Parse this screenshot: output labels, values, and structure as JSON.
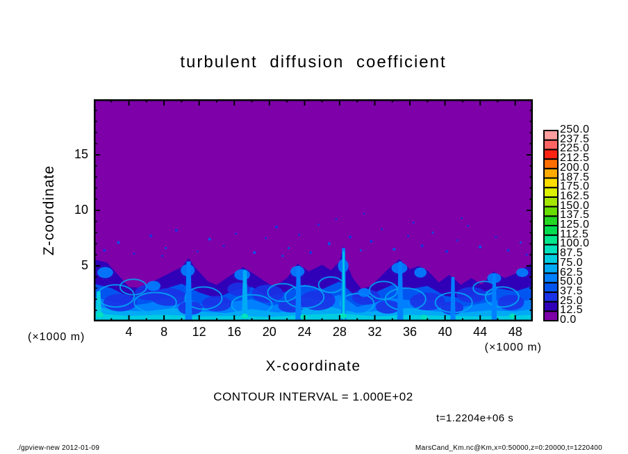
{
  "header": {
    "title": "turbulent diffusion coefficient"
  },
  "annotations": {
    "contour_interval": "CONTOUR INTERVAL = 1.000E+02",
    "time_label": "t=1.2204e+06 s"
  },
  "footer": {
    "left": "./gpview-new  2012-01-09",
    "right": "MarsCand_Km.nc@Km,x=0:50000,z=0:20000,t=1220400"
  },
  "axes": {
    "x": {
      "label": "X-coordinate",
      "unit": "(×1000 m)",
      "min": 0,
      "max": 50,
      "major_step": 4,
      "minor_step": 2,
      "major_ticks": [
        4,
        8,
        12,
        16,
        20,
        24,
        28,
        32,
        36,
        40,
        44,
        48
      ]
    },
    "z": {
      "label": "Z-coordinate",
      "unit": "(×1000 m)",
      "min": 0,
      "max": 20,
      "major_step": 5,
      "minor_step": 1,
      "major_ticks": [
        5,
        10,
        15
      ]
    }
  },
  "chart_data": {
    "type": "heatmap",
    "title": "turbulent diffusion coefficient",
    "xlabel": "X-coordinate (×1000 m)",
    "ylabel": "Z-coordinate (×1000 m)",
    "xlim": [
      0,
      50
    ],
    "ylim": [
      0,
      20
    ],
    "grid": false,
    "legend_position": "right-colorbar",
    "contour_interval": "1.000E+02",
    "time_seconds": "1.2204e+06",
    "colorbar": {
      "min": 0.0,
      "max": 250.0,
      "step": 12.5,
      "labels": [
        "0.0",
        "12.5",
        "25.0",
        "37.5",
        "50.0",
        "62.5",
        "75.0",
        "87.5",
        "100.0",
        "112.5",
        "125.0",
        "137.5",
        "150.0",
        "162.5",
        "175.0",
        "187.5",
        "200.0",
        "212.5",
        "225.0",
        "237.5",
        "250.0"
      ],
      "colors": [
        "#7d00a8",
        "#3000b9",
        "#1932e6",
        "#0055f0",
        "#0080ff",
        "#00aaf5",
        "#00cde1",
        "#00e1be",
        "#00e68c",
        "#00dc50",
        "#23d723",
        "#69dc00",
        "#a5e600",
        "#dcf000",
        "#ffdc00",
        "#ffaa00",
        "#ff6e00",
        "#ff2314",
        "#ff6464",
        "#ff9e9e"
      ],
      "background_value_color": "#7d00a8"
    },
    "field": {
      "description": "Turbulent boundary layer of enhanced diffusion (values ~12.5-100) below z~5-7 km; near-zero (purple) above with scattered small turbulent patches.",
      "interface": [
        [
          0,
          5.6
        ],
        [
          1.5,
          5.3
        ],
        [
          3,
          4.0
        ],
        [
          4,
          3.1
        ],
        [
          5.5,
          3.0
        ],
        [
          7,
          3.7
        ],
        [
          8.5,
          4.3
        ],
        [
          10,
          4.9
        ],
        [
          10.8,
          5.7
        ],
        [
          11.5,
          4.9
        ],
        [
          13,
          3.6
        ],
        [
          14,
          3.3
        ],
        [
          15.5,
          4.1
        ],
        [
          17,
          4.9
        ],
        [
          18,
          4.4
        ],
        [
          19.5,
          3.6
        ],
        [
          20.5,
          3.1
        ],
        [
          22,
          3.9
        ],
        [
          23.2,
          5.2
        ],
        [
          24.5,
          4.5
        ],
        [
          26,
          5.1
        ],
        [
          27,
          4.6
        ],
        [
          28,
          5.4
        ],
        [
          28.4,
          6.8
        ],
        [
          28.8,
          5.2
        ],
        [
          29.5,
          3.9
        ],
        [
          30.5,
          2.9
        ],
        [
          31.5,
          3.2
        ],
        [
          32.5,
          3.9
        ],
        [
          33.5,
          4.7
        ],
        [
          34.8,
          5.6
        ],
        [
          36,
          4.7
        ],
        [
          37,
          5.0
        ],
        [
          38,
          4.6
        ],
        [
          39.3,
          3.5
        ],
        [
          40.5,
          4.2
        ],
        [
          41.8,
          3.3
        ],
        [
          43,
          3.9
        ],
        [
          44.2,
          3.3
        ],
        [
          45.5,
          4.5
        ],
        [
          46.8,
          3.9
        ],
        [
          48,
          4.3
        ],
        [
          49,
          4.8
        ],
        [
          50,
          5.3
        ]
      ],
      "bands": [
        {
          "color": 3,
          "top": [
            [
              0,
              3.4
            ],
            [
              2,
              3.0
            ],
            [
              4,
              2.2
            ],
            [
              6,
              2.4
            ],
            [
              8,
              2.9
            ],
            [
              10,
              3.4
            ],
            [
              12,
              2.6
            ],
            [
              14,
              2.1
            ],
            [
              16,
              2.8
            ],
            [
              18,
              3.1
            ],
            [
              20,
              2.2
            ],
            [
              22,
              2.7
            ],
            [
              24,
              3.3
            ],
            [
              26,
              2.9
            ],
            [
              28,
              3.6
            ],
            [
              30,
              2.1
            ],
            [
              32,
              2.6
            ],
            [
              34,
              3.3
            ],
            [
              36,
              2.9
            ],
            [
              38,
              3.2
            ],
            [
              40,
              2.3
            ],
            [
              42,
              2.1
            ],
            [
              44,
              2.6
            ],
            [
              46,
              3.0
            ],
            [
              48,
              2.7
            ],
            [
              50,
              3.2
            ]
          ]
        },
        {
          "color": 4,
          "top": [
            [
              0,
              2.2
            ],
            [
              2,
              1.8
            ],
            [
              4,
              1.4
            ],
            [
              6,
              1.6
            ],
            [
              8,
              2.0
            ],
            [
              10,
              2.3
            ],
            [
              12,
              1.6
            ],
            [
              14,
              1.3
            ],
            [
              16,
              1.8
            ],
            [
              18,
              2.0
            ],
            [
              20,
              1.4
            ],
            [
              22,
              1.7
            ],
            [
              24,
              2.2
            ],
            [
              26,
              1.9
            ],
            [
              28,
              2.4
            ],
            [
              30,
              1.3
            ],
            [
              32,
              1.7
            ],
            [
              34,
              2.1
            ],
            [
              36,
              1.9
            ],
            [
              38,
              2.0
            ],
            [
              40,
              1.5
            ],
            [
              42,
              1.3
            ],
            [
              44,
              1.6
            ],
            [
              46,
              1.9
            ],
            [
              48,
              1.7
            ],
            [
              50,
              2.0
            ]
          ]
        },
        {
          "color": 5,
          "top": [
            [
              0,
              1.35
            ],
            [
              3,
              1.0
            ],
            [
              6,
              0.9
            ],
            [
              9,
              1.2
            ],
            [
              12,
              0.9
            ],
            [
              15,
              0.75
            ],
            [
              18,
              1.1
            ],
            [
              21,
              0.8
            ],
            [
              24,
              1.2
            ],
            [
              27,
              1.3
            ],
            [
              30,
              0.75
            ],
            [
              33,
              1.0
            ],
            [
              36,
              1.2
            ],
            [
              39,
              0.9
            ],
            [
              42,
              0.8
            ],
            [
              45,
              1.0
            ],
            [
              48,
              0.9
            ],
            [
              50,
              1.1
            ]
          ]
        },
        {
          "color": 6,
          "top": [
            [
              0,
              0.7
            ],
            [
              4,
              0.5
            ],
            [
              8,
              0.6
            ],
            [
              12,
              0.45
            ],
            [
              16,
              0.5
            ],
            [
              20,
              0.4
            ],
            [
              24,
              0.6
            ],
            [
              28,
              0.7
            ],
            [
              32,
              0.45
            ],
            [
              36,
              0.6
            ],
            [
              40,
              0.5
            ],
            [
              44,
              0.45
            ],
            [
              48,
              0.5
            ],
            [
              50,
              0.6
            ]
          ]
        }
      ],
      "dark_eddies": [
        [
          3,
          1.7,
          1.9,
          0.8
        ],
        [
          6.2,
          2.6,
          1.5,
          0.7
        ],
        [
          8.5,
          2.2,
          2.0,
          0.8
        ],
        [
          11,
          1.2,
          1.4,
          0.6
        ],
        [
          14,
          1.6,
          1.7,
          0.7
        ],
        [
          16.5,
          2.9,
          1.3,
          0.6
        ],
        [
          19.8,
          2.5,
          1.8,
          0.8
        ],
        [
          22.5,
          1.4,
          1.5,
          0.6
        ],
        [
          25.5,
          1.9,
          2.0,
          0.9
        ],
        [
          31,
          2.2,
          1.6,
          0.7
        ],
        [
          33.5,
          1.3,
          1.4,
          0.6
        ],
        [
          38,
          1.8,
          2.0,
          0.8
        ],
        [
          40.8,
          1.2,
          1.3,
          0.6
        ],
        [
          43,
          2.4,
          1.7,
          0.7
        ],
        [
          47.5,
          1.7,
          1.5,
          0.7
        ]
      ],
      "swirl_arcs": [
        [
          2.5,
          2.3,
          2.1,
          1.0
        ],
        [
          4.5,
          3.1,
          1.5,
          0.7
        ],
        [
          7,
          1.7,
          2.4,
          0.9
        ],
        [
          12.5,
          2.1,
          2.1,
          1.0
        ],
        [
          18,
          1.5,
          2.3,
          0.9
        ],
        [
          21.5,
          2.6,
          1.7,
          0.8
        ],
        [
          24,
          2.2,
          2.2,
          1.0
        ],
        [
          27,
          3.3,
          1.4,
          0.7
        ],
        [
          30,
          1.6,
          1.9,
          0.9
        ],
        [
          33,
          2.8,
          1.6,
          0.8
        ],
        [
          35.5,
          2.0,
          2.3,
          1.0
        ],
        [
          41,
          1.7,
          2.1,
          0.9
        ],
        [
          44.5,
          3.0,
          1.3,
          0.6
        ],
        [
          46.5,
          2.2,
          1.9,
          0.9
        ]
      ],
      "wisps": [
        [
          1.3,
          4.4,
          0.9,
          0.5
        ],
        [
          6.8,
          3.2,
          0.8,
          0.45
        ],
        [
          10.7,
          4.6,
          0.8,
          0.55
        ],
        [
          16.9,
          4.2,
          0.9,
          0.5
        ],
        [
          23.2,
          4.5,
          0.8,
          0.5
        ],
        [
          28.4,
          5.0,
          0.6,
          0.6
        ],
        [
          30.8,
          2.6,
          0.7,
          0.4
        ],
        [
          34.8,
          4.8,
          0.9,
          0.5
        ],
        [
          37.2,
          4.4,
          0.7,
          0.45
        ],
        [
          45.6,
          3.9,
          0.8,
          0.45
        ],
        [
          48.8,
          4.4,
          0.7,
          0.4
        ]
      ],
      "plumes": [
        {
          "x": 0.55,
          "top": 2.7,
          "w": 0.35,
          "c": 6
        },
        {
          "x": 10.8,
          "top": 5.4,
          "w": 0.4,
          "c": 4
        },
        {
          "x": 17.2,
          "top": 4.6,
          "w": 0.35,
          "c": 5
        },
        {
          "x": 23.3,
          "top": 5.0,
          "w": 0.35,
          "c": 4
        },
        {
          "x": 28.45,
          "top": 6.6,
          "w": 0.3,
          "c": 4
        },
        {
          "x": 28.45,
          "top": 6.3,
          "w": 0.14,
          "c": 6
        },
        {
          "x": 34.9,
          "top": 5.4,
          "w": 0.35,
          "c": 4
        },
        {
          "x": 40.9,
          "top": 4.0,
          "w": 0.3,
          "c": 4
        },
        {
          "x": 45.6,
          "top": 4.3,
          "w": 0.3,
          "c": 4
        }
      ],
      "bottom_spots": [
        [
          0.7,
          0.6
        ],
        [
          17.2,
          0.45
        ],
        [
          23.9,
          0.4
        ],
        [
          28.4,
          0.5
        ],
        [
          37.6,
          0.35
        ],
        [
          47.7,
          0.45
        ]
      ],
      "specks": [
        [
          1.2,
          6.4,
          2,
          2
        ],
        [
          2.8,
          7.1,
          2,
          3
        ],
        [
          4.6,
          6.1,
          1.5,
          2
        ],
        [
          6.5,
          7.7,
          2,
          2
        ],
        [
          7.8,
          5.9,
          1.5,
          2
        ],
        [
          8.2,
          6.6,
          1.5,
          3
        ],
        [
          9.4,
          8.2,
          2,
          2
        ],
        [
          11.8,
          6.3,
          1.5,
          2
        ],
        [
          13.2,
          7.4,
          2,
          3
        ],
        [
          14.8,
          6.8,
          1.5,
          2
        ],
        [
          16.2,
          7.9,
          1.5,
          2
        ],
        [
          18.3,
          6.2,
          2,
          3
        ],
        [
          19.6,
          7.5,
          1.5,
          2
        ],
        [
          20.8,
          8.5,
          2,
          2
        ],
        [
          21.5,
          5.9,
          1.5,
          3
        ],
        [
          22.2,
          6.6,
          1.5,
          3
        ],
        [
          23.4,
          7.8,
          1.5,
          2
        ],
        [
          24.7,
          6.2,
          2,
          2
        ],
        [
          25.6,
          8.7,
          1.5,
          2
        ],
        [
          26.8,
          7.0,
          2,
          3
        ],
        [
          27.6,
          9.2,
          1.5,
          2
        ],
        [
          29.2,
          7.6,
          2,
          2
        ],
        [
          30.4,
          6.4,
          1.5,
          3
        ],
        [
          30.8,
          9.7,
          1.3,
          2
        ],
        [
          31.6,
          7.2,
          2,
          2
        ],
        [
          32.8,
          8.3,
          1.5,
          2
        ],
        [
          34.2,
          6.5,
          2,
          3
        ],
        [
          35.8,
          7.7,
          1.5,
          2
        ],
        [
          36.4,
          8.9,
          1.5,
          2
        ],
        [
          37.4,
          6.8,
          2,
          2
        ],
        [
          38.6,
          8.0,
          1.5,
          3
        ],
        [
          40.2,
          6.3,
          2,
          2
        ],
        [
          41.4,
          7.3,
          1.5,
          2
        ],
        [
          41.9,
          9.3,
          1.3,
          2
        ],
        [
          42.6,
          8.6,
          1.5,
          2
        ],
        [
          44.0,
          6.7,
          2,
          3
        ],
        [
          45.8,
          7.6,
          1.5,
          2
        ],
        [
          47.2,
          6.4,
          2,
          2
        ],
        [
          48.6,
          7.1,
          1.5,
          3
        ],
        [
          49.3,
          6.0,
          1.5,
          2
        ]
      ]
    }
  }
}
